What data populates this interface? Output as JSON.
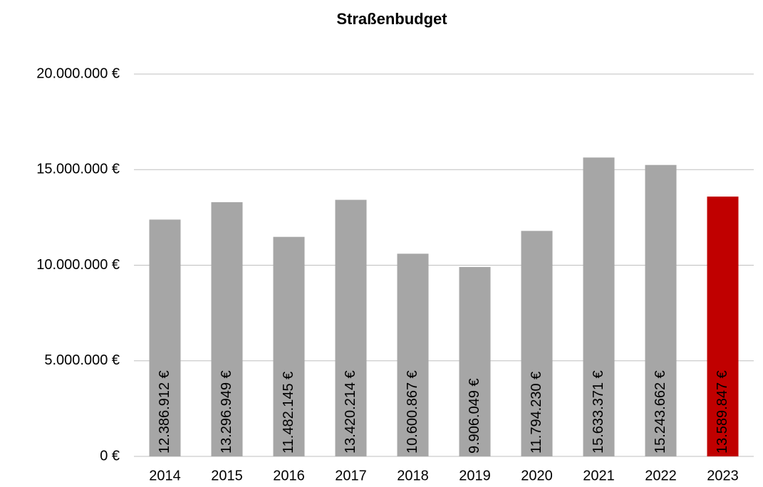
{
  "chart_data": {
    "type": "bar",
    "title": "Straßenbudget",
    "categories": [
      "2014",
      "2015",
      "2016",
      "2017",
      "2018",
      "2019",
      "2020",
      "2021",
      "2022",
      "2023"
    ],
    "values": [
      12386912,
      13296949,
      11482145,
      13420214,
      10600867,
      9906049,
      11794230,
      15633371,
      15243662,
      13589847
    ],
    "value_labels": [
      "12.386.912 €",
      "13.296.949 €",
      "11.482.145 €",
      "13.420.214 €",
      "10.600.867 €",
      "9.906.049 €",
      "11.794.230 €",
      "15.633.371 €",
      "15.243.662 €",
      "13.589.847 €"
    ],
    "colors": [
      "#a6a6a6",
      "#a6a6a6",
      "#a6a6a6",
      "#a6a6a6",
      "#a6a6a6",
      "#a6a6a6",
      "#a6a6a6",
      "#a6a6a6",
      "#a6a6a6",
      "#c00000"
    ],
    "value_label_colors": [
      "#000000",
      "#000000",
      "#000000",
      "#000000",
      "#000000",
      "#000000",
      "#000000",
      "#000000",
      "#000000",
      "#ffffff"
    ],
    "ylim": [
      0,
      20000000
    ],
    "yticks": [
      {
        "value": 0,
        "label": "0 €"
      },
      {
        "value": 5000000,
        "label": "5.000.000 €"
      },
      {
        "value": 10000000,
        "label": "10.000.000 €"
      },
      {
        "value": 15000000,
        "label": "15.000.000 €"
      },
      {
        "value": 20000000,
        "label": "20.000.000 €"
      }
    ],
    "grid": true
  }
}
